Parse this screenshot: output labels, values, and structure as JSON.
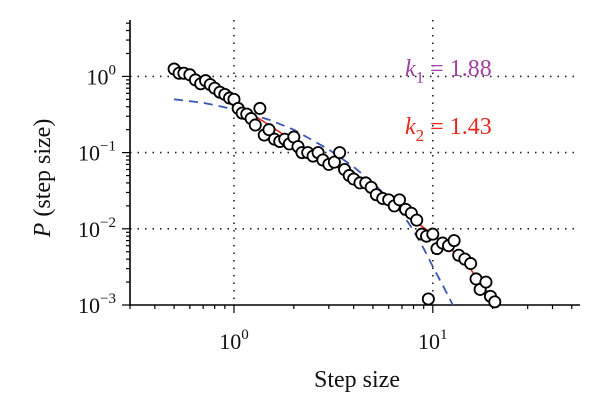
{
  "chart_data": {
    "type": "scatter",
    "title": "",
    "xlabel": "Step size",
    "ylabel_var": "P",
    "ylabel_rest": " (step size)",
    "x_scale": "log",
    "y_scale": "log",
    "xlim": [
      0.3,
      55
    ],
    "ylim": [
      0.001,
      5.5
    ],
    "grid": "dotted at decades 1, 10 (x) and 0.01, 0.1, 1 (y)",
    "x_ticks": [
      {
        "value": 1,
        "base": "10",
        "exp": "0"
      },
      {
        "value": 10,
        "base": "10",
        "exp": "1"
      }
    ],
    "y_ticks": [
      {
        "value": 0.001,
        "base": "10",
        "exp": "−3"
      },
      {
        "value": 0.01,
        "base": "10",
        "exp": "−2"
      },
      {
        "value": 0.1,
        "base": "10",
        "exp": "−1"
      },
      {
        "value": 1,
        "base": "10",
        "exp": "0"
      }
    ],
    "annotations": [
      {
        "var": "k",
        "sub": "1",
        "rest": " = 1.88",
        "color": "#a040a0"
      },
      {
        "var": "k",
        "sub": "2",
        "rest": " = 1.43",
        "color": "#e8291c"
      }
    ],
    "series": [
      {
        "kind": "points",
        "color": "#000000",
        "x": [
          0.5,
          0.53,
          0.56,
          0.6,
          0.64,
          0.68,
          0.72,
          0.76,
          0.8,
          0.85,
          0.9,
          0.95,
          1.0,
          1.05,
          1.1,
          1.16,
          1.22,
          1.28,
          1.35,
          1.42,
          1.5,
          1.6,
          1.7,
          1.8,
          1.9,
          2.0,
          2.1,
          2.2,
          2.35,
          2.5,
          2.65,
          2.8,
          3.0,
          3.2,
          3.4,
          3.6,
          3.8,
          4.0,
          4.3,
          4.6,
          4.9,
          5.2,
          5.6,
          6.0,
          6.4,
          6.8,
          7.3,
          7.8,
          8.3,
          8.8,
          9.3,
          9.5,
          10.0,
          10.5,
          11.2,
          12.0,
          12.8,
          13.5,
          14.5,
          15.5,
          16.5,
          17.3,
          18.5,
          19.5,
          20.5
        ],
        "y": [
          1.25,
          1.1,
          1.1,
          1.05,
          0.9,
          0.8,
          0.88,
          0.78,
          0.7,
          0.62,
          0.58,
          0.52,
          0.5,
          0.38,
          0.33,
          0.32,
          0.28,
          0.23,
          0.38,
          0.17,
          0.2,
          0.15,
          0.14,
          0.15,
          0.13,
          0.16,
          0.12,
          0.1,
          0.1,
          0.09,
          0.1,
          0.08,
          0.07,
          0.075,
          0.1,
          0.06,
          0.05,
          0.045,
          0.04,
          0.04,
          0.035,
          0.028,
          0.025,
          0.024,
          0.02,
          0.024,
          0.018,
          0.016,
          0.013,
          0.0085,
          0.008,
          0.0012,
          0.0085,
          0.0055,
          0.0065,
          0.006,
          0.007,
          0.0045,
          0.004,
          0.0035,
          0.0022,
          0.0016,
          0.002,
          0.0013,
          0.0011
        ]
      },
      {
        "kind": "fit-line",
        "color": "#e8291c",
        "x": [
          0.5,
          0.7,
          1.0,
          1.5,
          2.0,
          3.0,
          4.0,
          5.0,
          6.0,
          7.0,
          8.0,
          10.0,
          12.0,
          15.0,
          20.0
        ],
        "y": [
          1.2,
          0.75,
          0.45,
          0.23,
          0.14,
          0.075,
          0.048,
          0.032,
          0.023,
          0.017,
          0.013,
          0.0085,
          0.0058,
          0.0033,
          0.0012
        ]
      },
      {
        "kind": "fit-dashed",
        "color": "#3b55b5",
        "x": [
          0.5,
          0.7,
          1.0,
          1.5,
          2.0,
          3.0,
          4.0,
          5.0,
          6.0,
          7.0,
          8.0,
          9.0,
          10.0,
          11.0,
          12.0,
          13.0
        ],
        "y": [
          0.5,
          0.45,
          0.37,
          0.27,
          0.2,
          0.11,
          0.065,
          0.04,
          0.025,
          0.016,
          0.0095,
          0.0055,
          0.0032,
          0.002,
          0.0013,
          0.00085
        ]
      }
    ]
  }
}
